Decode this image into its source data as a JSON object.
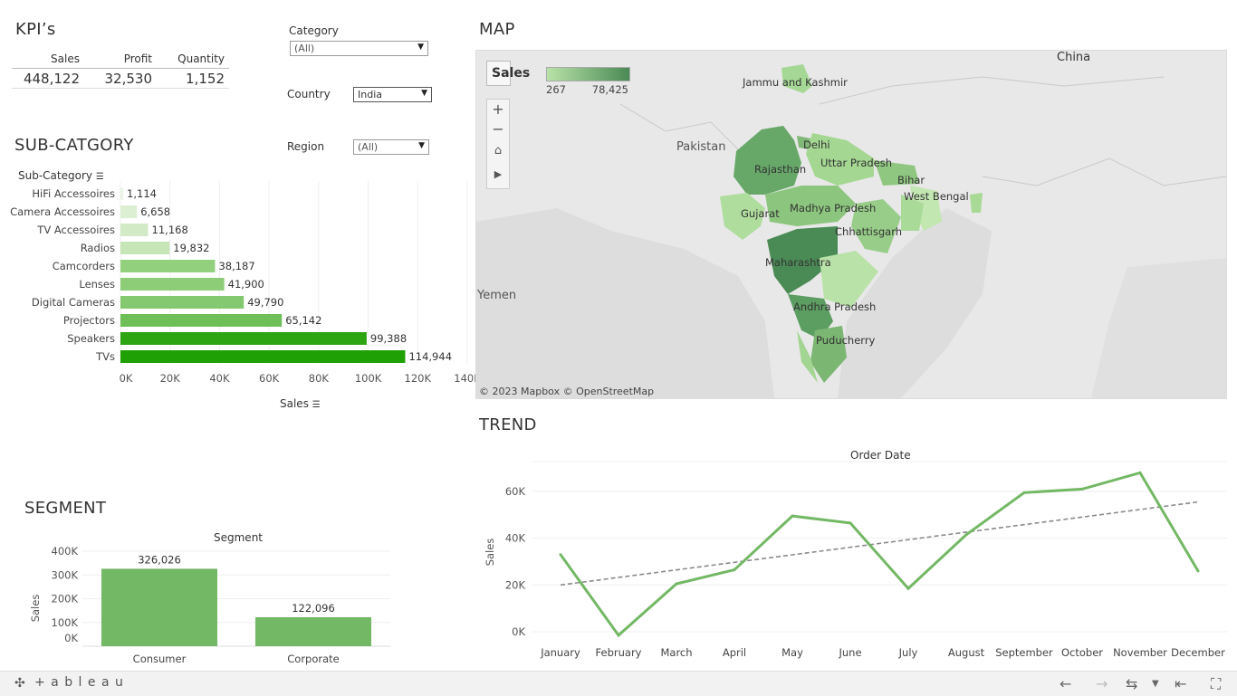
{
  "kpi": {
    "title": "KPI’s",
    "headers": [
      "Sales",
      "Profit",
      "Quantity"
    ],
    "values": [
      "448,122",
      "32,530",
      "1,152"
    ]
  },
  "filters": {
    "category_label": "Category",
    "category_value": "(All)",
    "country_label": "Country",
    "country_value": "India",
    "region_label": "Region",
    "region_value": "(All)"
  },
  "subcat": {
    "title": "SUB-CATGORY",
    "axis_header": "Sub-Category",
    "xlabel": "Sales"
  },
  "map": {
    "title": "MAP",
    "legend_title": "Sales",
    "legend_min": "267",
    "legend_max": "78,425",
    "attribution": "© 2023 Mapbox  © OpenStreetMap",
    "countries": [
      "China",
      "Pakistan",
      "Yemen"
    ],
    "states": [
      "Jammu and Kashmir",
      "Delhi",
      "Rajasthan",
      "Uttar Pradesh",
      "Bihar",
      "West Bengal",
      "Gujarat",
      "Madhya Pradesh",
      "Chhattisgarh",
      "Maharashtra",
      "Andhra Pradesh",
      "Puducherry"
    ],
    "colors": {
      "light": "#b9e2a8",
      "dark": "#4a8a55",
      "land": "#ebebeb",
      "water": "#dcdcdc"
    }
  },
  "segment": {
    "title": "SEGMENT",
    "header": "Segment",
    "ylabel": "Sales"
  },
  "trend": {
    "title": "TREND",
    "header": "Order Date",
    "ylabel": "Sales"
  },
  "footer": {
    "brand": "+ a b l e a u"
  },
  "chart_data": [
    {
      "type": "bar",
      "orientation": "horizontal",
      "categories": [
        "HiFi Accessoires",
        "Camera Accessoires",
        "TV Accessoires",
        "Radios",
        "Camcorders",
        "Lenses",
        "Digital Cameras",
        "Projectors",
        "Speakers",
        "TVs"
      ],
      "values": [
        1114,
        6658,
        11168,
        19832,
        38187,
        41900,
        49790,
        65142,
        99388,
        114944
      ],
      "value_labels": [
        "1,114",
        "6,658",
        "11,168",
        "19,832",
        "38,187",
        "41,900",
        "49,790",
        "65,142",
        "99,388",
        "114,944"
      ],
      "colors": [
        "#eaf4e4",
        "#dcefd2",
        "#d2ebc6",
        "#c7e6b8",
        "#93d07e",
        "#8dcd78",
        "#84c96f",
        "#6ebf58",
        "#2da411",
        "#1fa005"
      ],
      "xlabel": "Sales",
      "xlim": [
        0,
        140000
      ],
      "xticks": [
        "0K",
        "20K",
        "40K",
        "60K",
        "80K",
        "100K",
        "120K",
        "140K"
      ],
      "xtick_values": [
        0,
        20000,
        40000,
        60000,
        80000,
        100000,
        120000,
        140000
      ]
    },
    {
      "type": "bar",
      "categories": [
        "Consumer",
        "Corporate"
      ],
      "values": [
        326026,
        122096
      ],
      "value_labels": [
        "326,026",
        "122,096"
      ],
      "ylabel": "Sales",
      "ylim": [
        0,
        400000
      ],
      "yticks": [
        "0K",
        "100K",
        "200K",
        "300K",
        "400K"
      ],
      "ytick_values": [
        0,
        100000,
        200000,
        300000,
        400000
      ],
      "color": "#73b864"
    },
    {
      "type": "line",
      "categories": [
        "January",
        "February",
        "March",
        "April",
        "May",
        "June",
        "July",
        "August",
        "September",
        "October",
        "November",
        "December"
      ],
      "values": [
        33000,
        -1500,
        20500,
        26500,
        49500,
        46500,
        18500,
        41500,
        59500,
        61000,
        68000,
        26000
      ],
      "trendline": [
        20000,
        55500
      ],
      "ylabel": "Sales",
      "ylim": [
        -2000,
        70000
      ],
      "yticks": [
        "0K",
        "20K",
        "40K",
        "60K"
      ],
      "ytick_values": [
        0,
        20000,
        40000,
        60000
      ],
      "color": "#73b864"
    }
  ]
}
